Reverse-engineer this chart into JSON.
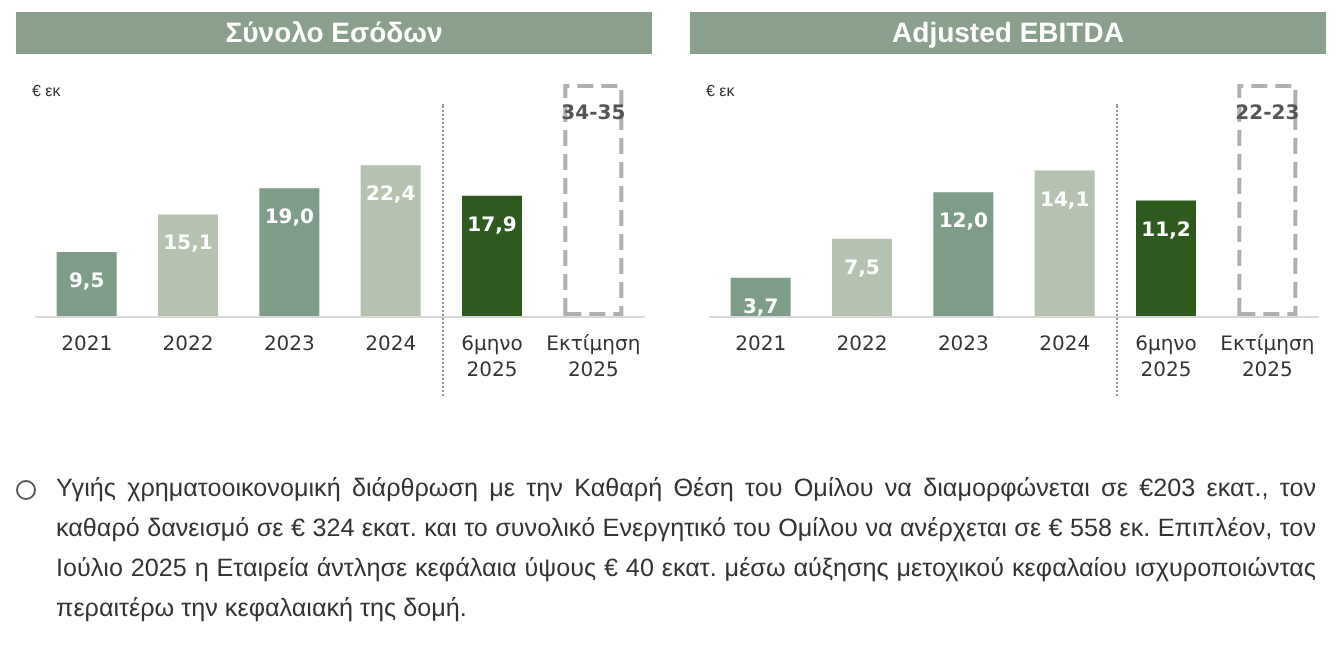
{
  "chart_data": [
    {
      "type": "bar",
      "title": "Σύνολο Εσόδων",
      "ylabel": "€ εκ",
      "tick_labels": "x",
      "categories": [
        "2021",
        "2022",
        "2023",
        "2024",
        "6μηνο\n2025",
        "Εκτίμηση\n2025"
      ],
      "series": [
        {
          "values": [
            9.5,
            15.1,
            19.0,
            22.4,
            17.9,
            null
          ],
          "colors": [
            "#7d9d88",
            "#b5c2b0",
            "#7d9d88",
            "#b5c2b0",
            "#2d5a1d",
            null
          ],
          "value_labels": [
            "9,5",
            "15,1",
            "19,0",
            "22,4",
            "17,9",
            null
          ]
        },
        {
          "values": [
            null,
            null,
            null,
            null,
            null,
            34.5
          ],
          "color": "#b0b0b0",
          "line_style": "dashed",
          "value_labels": [
            null,
            null,
            null,
            null,
            null,
            "34-35"
          ]
        }
      ],
      "annotations": [
        "Υγιής χρηματοοικονομική διάρθρωση με την Καθαρή Θέση του Ομίλου να διαμορφώνεται σε €203 εκατ., τον καθαρό δανεισμό σε € 324 εκατ. και το συνολικό Ενεργητικό του Ομίλου να ανέρχεται σε € 558 εκ. Επιπλέον, τον Ιούλιο 2025 η Εταιρεία άντλησε κεφάλαια ύψους € 40 εκατ. μέσω αύξησης μετοχικού κεφαλαίου ισχυροποιώντας περαιτέρω την κεφαλαιακή της δομή."
      ]
    },
    {
      "type": "bar",
      "title": "Adjusted EBITDA",
      "ylabel": "€ εκ",
      "tick_labels": "x",
      "categories": [
        "2021",
        "2022",
        "2023",
        "2024",
        "6μηνο\n2025",
        "Εκτίμηση\n2025"
      ],
      "series": [
        {
          "values": [
            3.7,
            7.5,
            12.0,
            14.1,
            11.2,
            null
          ],
          "colors": [
            "#7d9d88",
            "#b5c2b0",
            "#7d9d88",
            "#b5c2b0",
            "#2d5a1d",
            null
          ],
          "value_labels": [
            "3,7",
            "7,5",
            "12,0",
            "14,1",
            "11,2",
            null
          ]
        },
        {
          "values": [
            null,
            null,
            null,
            null,
            null,
            22.5
          ],
          "color": "#b0b0b0",
          "line_style": "dashed",
          "value_labels": [
            null,
            null,
            null,
            null,
            null,
            "22-23"
          ]
        }
      ]
    }
  ]
}
